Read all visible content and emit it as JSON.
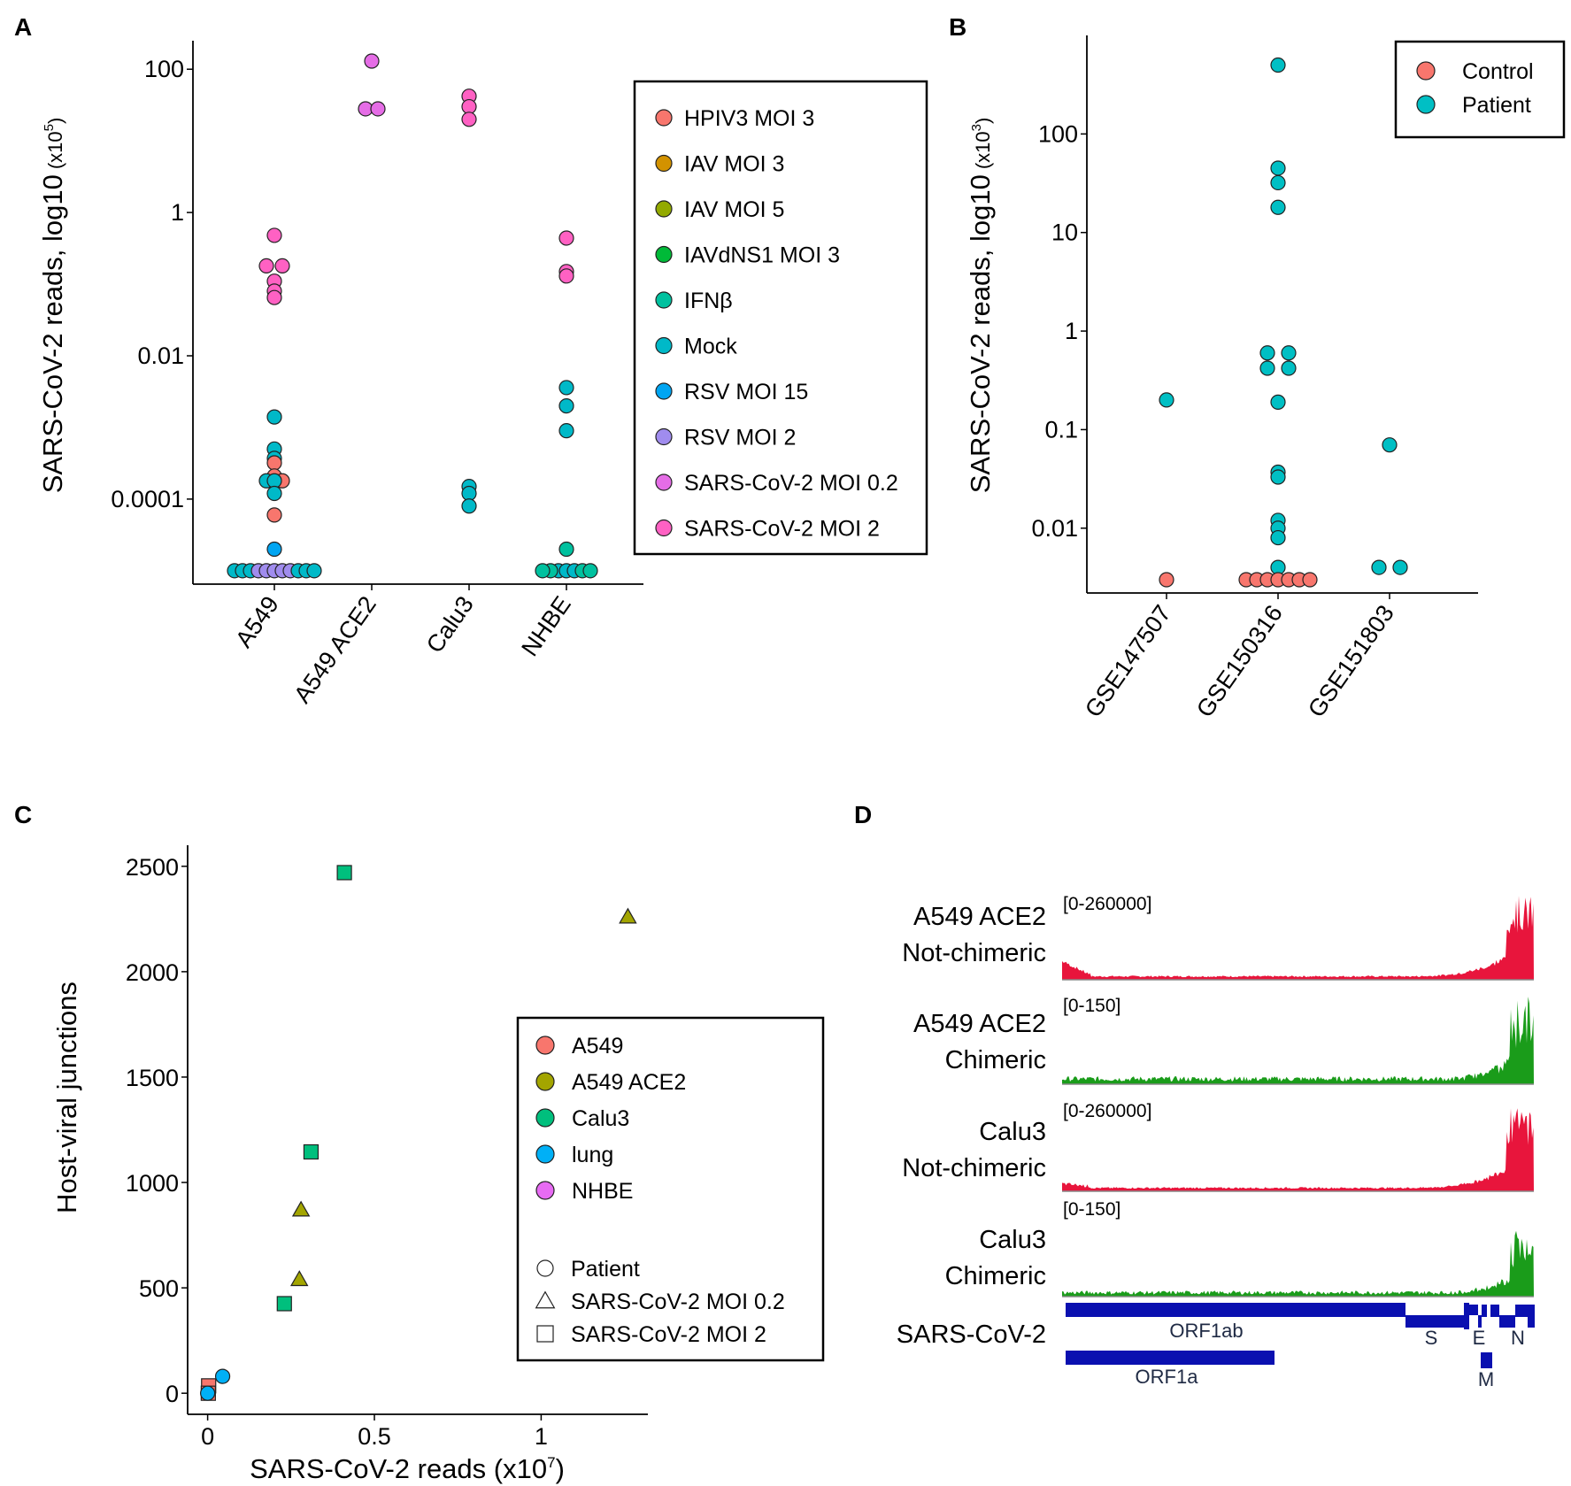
{
  "colors": {
    "HPIV3 MOI 3": "#F8766D",
    "IAV MOI 3": "#D39200",
    "IAV MOI 5": "#93AA00",
    "IAVdNS1 MOI 3": "#00BA38",
    "IFNβ": "#00C19F",
    "Mock": "#00B9C8",
    "RSV MOI 15": "#00A5F2",
    "RSV MOI 2": "#A08CEE",
    "SARS-CoV-2 MOI 0.2": "#E56DE6",
    "SARS-CoV-2 MOI 2": "#FF61C3",
    "Control": "#F8766D",
    "Patient": "#00BFC4",
    "A549": "#F8766D",
    "A549 ACE2": "#A3A500",
    "Calu3": "#00BF7D",
    "lung": "#00B0F6",
    "NHBE": "#E76BF3",
    "chimeric": "#1A9C1A",
    "not_chimeric": "#E8153C",
    "gene": "#0A10B0"
  },
  "chart_data": [
    {
      "panel": "A",
      "type": "scatter",
      "scale": "log10",
      "ylabel": "SARS-CoV-2 reads, log10",
      "ylabel_unit_base": "(x10",
      "ylabel_unit_exp": "5",
      "ylabel_unit_close": ")",
      "categories": [
        "A549",
        "A549 ACE2",
        "Calu3",
        "NHBE"
      ],
      "yticks": [
        {
          "v": 100,
          "label": "100"
        },
        {
          "v": 1,
          "label": "1"
        },
        {
          "v": 0.01,
          "label": "0.01"
        },
        {
          "v": 0.0001,
          "label": "0.0001"
        }
      ],
      "ylim": [
        6.5e-06,
        250
      ],
      "legend": [
        "HPIV3 MOI 3",
        "IAV MOI 3",
        "IAV MOI 5",
        "IAVdNS1 MOI 3",
        "IFNβ",
        "Mock",
        "RSV MOI 15",
        "RSV MOI 2",
        "SARS-CoV-2 MOI 0.2",
        "SARS-CoV-2 MOI 2"
      ],
      "points": [
        {
          "cat": "A549",
          "group": "SARS-CoV-2 MOI 2",
          "y": 0.48,
          "dx": 0
        },
        {
          "cat": "A549",
          "group": "SARS-CoV-2 MOI 2",
          "y": 0.18,
          "dx": -0.09
        },
        {
          "cat": "A549",
          "group": "SARS-CoV-2 MOI 2",
          "y": 0.18,
          "dx": 0.09
        },
        {
          "cat": "A549",
          "group": "SARS-CoV-2 MOI 2",
          "y": 0.11,
          "dx": 0
        },
        {
          "cat": "A549",
          "group": "SARS-CoV-2 MOI 2",
          "y": 0.08,
          "dx": 0
        },
        {
          "cat": "A549",
          "group": "SARS-CoV-2 MOI 2",
          "y": 0.065,
          "dx": 0
        },
        {
          "cat": "A549",
          "group": "Mock",
          "y": 0.0014,
          "dx": 0
        },
        {
          "cat": "A549",
          "group": "Mock",
          "y": 0.0005,
          "dx": 0
        },
        {
          "cat": "A549",
          "group": "Mock",
          "y": 0.00037,
          "dx": 0
        },
        {
          "cat": "A549",
          "group": "HPIV3 MOI 3",
          "y": 0.00032,
          "dx": 0
        },
        {
          "cat": "A549",
          "group": "HPIV3 MOI 3",
          "y": 0.00021,
          "dx": 0
        },
        {
          "cat": "A549",
          "group": "Mock",
          "y": 0.00018,
          "dx": -0.09
        },
        {
          "cat": "A549",
          "group": "HPIV3 MOI 3",
          "y": 0.00018,
          "dx": 0.09
        },
        {
          "cat": "A549",
          "group": "Mock",
          "y": 0.00018,
          "dx": 0
        },
        {
          "cat": "A549",
          "group": "Mock",
          "y": 0.00012,
          "dx": 0
        },
        {
          "cat": "A549",
          "group": "HPIV3 MOI 3",
          "y": 6e-05,
          "dx": 0
        },
        {
          "cat": "A549",
          "group": "RSV MOI 15",
          "y": 2e-05,
          "dx": 0
        },
        {
          "cat": "A549",
          "group": "Mock",
          "y": 1e-05,
          "dx": -0.45
        },
        {
          "cat": "A549",
          "group": "Mock",
          "y": 1e-05,
          "dx": -0.36
        },
        {
          "cat": "A549",
          "group": "Mock",
          "y": 1e-05,
          "dx": -0.27
        },
        {
          "cat": "A549",
          "group": "RSV MOI 2",
          "y": 1e-05,
          "dx": -0.18
        },
        {
          "cat": "A549",
          "group": "RSV MOI 2",
          "y": 1e-05,
          "dx": -0.09
        },
        {
          "cat": "A549",
          "group": "RSV MOI 2",
          "y": 1e-05,
          "dx": 0
        },
        {
          "cat": "A549",
          "group": "RSV MOI 2",
          "y": 1e-05,
          "dx": 0.09
        },
        {
          "cat": "A549",
          "group": "RSV MOI 2",
          "y": 1e-05,
          "dx": 0.18
        },
        {
          "cat": "A549",
          "group": "Mock",
          "y": 1e-05,
          "dx": 0.27
        },
        {
          "cat": "A549",
          "group": "Mock",
          "y": 1e-05,
          "dx": 0.36
        },
        {
          "cat": "A549",
          "group": "Mock",
          "y": 1e-05,
          "dx": 0.45
        },
        {
          "cat": "A549 ACE2",
          "group": "SARS-CoV-2 MOI 0.2",
          "y": 130,
          "dx": 0
        },
        {
          "cat": "A549 ACE2",
          "group": "SARS-CoV-2 MOI 0.2",
          "y": 28,
          "dx": -0.07
        },
        {
          "cat": "A549 ACE2",
          "group": "SARS-CoV-2 MOI 0.2",
          "y": 28,
          "dx": 0.07
        },
        {
          "cat": "Calu3",
          "group": "SARS-CoV-2 MOI 2",
          "y": 42,
          "dx": 0
        },
        {
          "cat": "Calu3",
          "group": "SARS-CoV-2 MOI 2",
          "y": 30,
          "dx": 0
        },
        {
          "cat": "Calu3",
          "group": "SARS-CoV-2 MOI 2",
          "y": 20,
          "dx": 0
        },
        {
          "cat": "Calu3",
          "group": "Mock",
          "y": 0.00015,
          "dx": 0
        },
        {
          "cat": "Calu3",
          "group": "Mock",
          "y": 0.00012,
          "dx": 0
        },
        {
          "cat": "Calu3",
          "group": "Mock",
          "y": 8e-05,
          "dx": 0
        },
        {
          "cat": "NHBE",
          "group": "SARS-CoV-2 MOI 2",
          "y": 0.44,
          "dx": 0
        },
        {
          "cat": "NHBE",
          "group": "SARS-CoV-2 MOI 2",
          "y": 0.15,
          "dx": 0
        },
        {
          "cat": "NHBE",
          "group": "SARS-CoV-2 MOI 2",
          "y": 0.13,
          "dx": 0
        },
        {
          "cat": "NHBE",
          "group": "Mock",
          "y": 0.0036,
          "dx": 0
        },
        {
          "cat": "NHBE",
          "group": "Mock",
          "y": 0.002,
          "dx": 0
        },
        {
          "cat": "NHBE",
          "group": "Mock",
          "y": 0.0009,
          "dx": 0
        },
        {
          "cat": "NHBE",
          "group": "IFNβ",
          "y": 2e-05,
          "dx": 0
        },
        {
          "cat": "NHBE",
          "group": "Mock",
          "y": 1e-05,
          "dx": -0.09
        },
        {
          "cat": "NHBE",
          "group": "Mock",
          "y": 1e-05,
          "dx": 0
        },
        {
          "cat": "NHBE",
          "group": "Mock",
          "y": 1e-05,
          "dx": 0.09
        },
        {
          "cat": "NHBE",
          "group": "IFNβ",
          "y": 1e-05,
          "dx": -0.18
        },
        {
          "cat": "NHBE",
          "group": "IFNβ",
          "y": 1e-05,
          "dx": -0.27
        },
        {
          "cat": "NHBE",
          "group": "IFNβ",
          "y": 1e-05,
          "dx": 0.18
        },
        {
          "cat": "NHBE",
          "group": "IFNβ",
          "y": 1e-05,
          "dx": 0.27
        }
      ]
    },
    {
      "panel": "B",
      "type": "scatter",
      "scale": "log10",
      "ylabel": "SARS-CoV-2 reads, log10",
      "ylabel_unit_base": "(x10",
      "ylabel_unit_exp": "3",
      "ylabel_unit_close": ")",
      "categories": [
        "GSE147507",
        "GSE150316",
        "GSE151803"
      ],
      "yticks": [
        {
          "v": 100,
          "label": "100"
        },
        {
          "v": 10,
          "label": "10"
        },
        {
          "v": 1,
          "label": "1"
        },
        {
          "v": 0.1,
          "label": "0.1"
        },
        {
          "v": 0.01,
          "label": "0.01"
        }
      ],
      "ylim": [
        0.0022,
        1000
      ],
      "legend": [
        "Control",
        "Patient"
      ],
      "points": [
        {
          "cat": "GSE147507",
          "group": "Patient",
          "y": 0.2,
          "dx": 0
        },
        {
          "cat": "GSE147507",
          "group": "Control",
          "y": 0.003,
          "dx": 0
        },
        {
          "cat": "GSE150316",
          "group": "Patient",
          "y": 500,
          "dx": 0
        },
        {
          "cat": "GSE150316",
          "group": "Patient",
          "y": 45,
          "dx": 0
        },
        {
          "cat": "GSE150316",
          "group": "Patient",
          "y": 32,
          "dx": 0
        },
        {
          "cat": "GSE150316",
          "group": "Patient",
          "y": 18,
          "dx": 0
        },
        {
          "cat": "GSE150316",
          "group": "Patient",
          "y": 0.6,
          "dx": -0.12
        },
        {
          "cat": "GSE150316",
          "group": "Patient",
          "y": 0.6,
          "dx": 0.12
        },
        {
          "cat": "GSE150316",
          "group": "Patient",
          "y": 0.42,
          "dx": -0.12
        },
        {
          "cat": "GSE150316",
          "group": "Patient",
          "y": 0.42,
          "dx": 0.12
        },
        {
          "cat": "GSE150316",
          "group": "Patient",
          "y": 0.19,
          "dx": 0
        },
        {
          "cat": "GSE150316",
          "group": "Patient",
          "y": 0.037,
          "dx": 0
        },
        {
          "cat": "GSE150316",
          "group": "Patient",
          "y": 0.033,
          "dx": 0
        },
        {
          "cat": "GSE150316",
          "group": "Patient",
          "y": 0.012,
          "dx": 0
        },
        {
          "cat": "GSE150316",
          "group": "Patient",
          "y": 0.01,
          "dx": 0
        },
        {
          "cat": "GSE150316",
          "group": "Patient",
          "y": 0.008,
          "dx": 0
        },
        {
          "cat": "GSE150316",
          "group": "Patient",
          "y": 0.004,
          "dx": 0
        },
        {
          "cat": "GSE150316",
          "group": "Control",
          "y": 0.003,
          "dx": -0.36
        },
        {
          "cat": "GSE150316",
          "group": "Control",
          "y": 0.003,
          "dx": -0.24
        },
        {
          "cat": "GSE150316",
          "group": "Control",
          "y": 0.003,
          "dx": -0.12
        },
        {
          "cat": "GSE150316",
          "group": "Control",
          "y": 0.003,
          "dx": 0
        },
        {
          "cat": "GSE150316",
          "group": "Control",
          "y": 0.003,
          "dx": 0.12
        },
        {
          "cat": "GSE150316",
          "group": "Control",
          "y": 0.003,
          "dx": 0.24
        },
        {
          "cat": "GSE150316",
          "group": "Control",
          "y": 0.003,
          "dx": 0.36
        },
        {
          "cat": "GSE151803",
          "group": "Patient",
          "y": 0.07,
          "dx": 0
        },
        {
          "cat": "GSE151803",
          "group": "Patient",
          "y": 0.004,
          "dx": -0.12
        },
        {
          "cat": "GSE151803",
          "group": "Patient",
          "y": 0.004,
          "dx": 0.12
        }
      ]
    },
    {
      "panel": "C",
      "type": "scatter",
      "xlabel_base": "SARS-CoV-2 reads (x10",
      "xlabel_exp": "7",
      "xlabel_close": ")",
      "ylabel": "Host-viral junctions",
      "xlim": [
        -0.06,
        1.32
      ],
      "ylim": [
        -100,
        2600
      ],
      "xticks": [
        {
          "v": 0,
          "label": "0"
        },
        {
          "v": 0.5,
          "label": "0.5"
        },
        {
          "v": 1,
          "label": "1"
        }
      ],
      "yticks": [
        {
          "v": 0,
          "label": "0"
        },
        {
          "v": 500,
          "label": "500"
        },
        {
          "v": 1000,
          "label": "1000"
        },
        {
          "v": 1500,
          "label": "1500"
        },
        {
          "v": 2000,
          "label": "2000"
        },
        {
          "v": 2500,
          "label": "2500"
        }
      ],
      "legend_colors": [
        "A549",
        "A549 ACE2",
        "Calu3",
        "lung",
        "NHBE"
      ],
      "legend_shapes": [
        {
          "shape": "circle",
          "label": "Patient"
        },
        {
          "shape": "triangle",
          "label": "SARS-CoV-2 MOI 0.2"
        },
        {
          "shape": "square",
          "label": "SARS-CoV-2 MOI 2"
        }
      ],
      "points": [
        {
          "group": "Calu3",
          "shape": "square",
          "x": 0.41,
          "y": 2470
        },
        {
          "group": "A549 ACE2",
          "shape": "triangle",
          "x": 1.26,
          "y": 2260
        },
        {
          "group": "Calu3",
          "shape": "square",
          "x": 0.31,
          "y": 1145
        },
        {
          "group": "A549 ACE2",
          "shape": "triangle",
          "x": 0.28,
          "y": 870
        },
        {
          "group": "A549 ACE2",
          "shape": "triangle",
          "x": 0.275,
          "y": 540
        },
        {
          "group": "Calu3",
          "shape": "square",
          "x": 0.23,
          "y": 425
        },
        {
          "group": "lung",
          "shape": "circle",
          "x": 0.045,
          "y": 80
        },
        {
          "group": "A549",
          "shape": "square",
          "x": 0.003,
          "y": 35
        },
        {
          "group": "A549",
          "shape": "square",
          "x": 0.002,
          "y": 0
        },
        {
          "group": "lung",
          "shape": "circle",
          "x": 0.0,
          "y": 0
        }
      ]
    }
  ],
  "panel_labels": {
    "a": "A",
    "b": "B",
    "c": "C",
    "d": "D"
  },
  "panel_d": {
    "tracks": [
      {
        "line1": "A549 ACE2",
        "line2": "Not-chimeric",
        "range": "[0-260000]",
        "kind": "not_chimeric"
      },
      {
        "line1": "A549 ACE2",
        "line2": "Chimeric",
        "range": "[0-150]",
        "kind": "chimeric"
      },
      {
        "line1": "Calu3",
        "line2": "Not-chimeric",
        "range": "[0-260000]",
        "kind": "not_chimeric"
      },
      {
        "line1": "Calu3",
        "line2": "Chimeric",
        "range": "[0-150]",
        "kind": "chimeric"
      }
    ],
    "genome_label": "SARS-CoV-2",
    "genes": {
      "orf1ab": "ORF1ab",
      "orf1a": "ORF1a",
      "s": "S",
      "e": "E",
      "m": "M",
      "n": "N"
    }
  }
}
